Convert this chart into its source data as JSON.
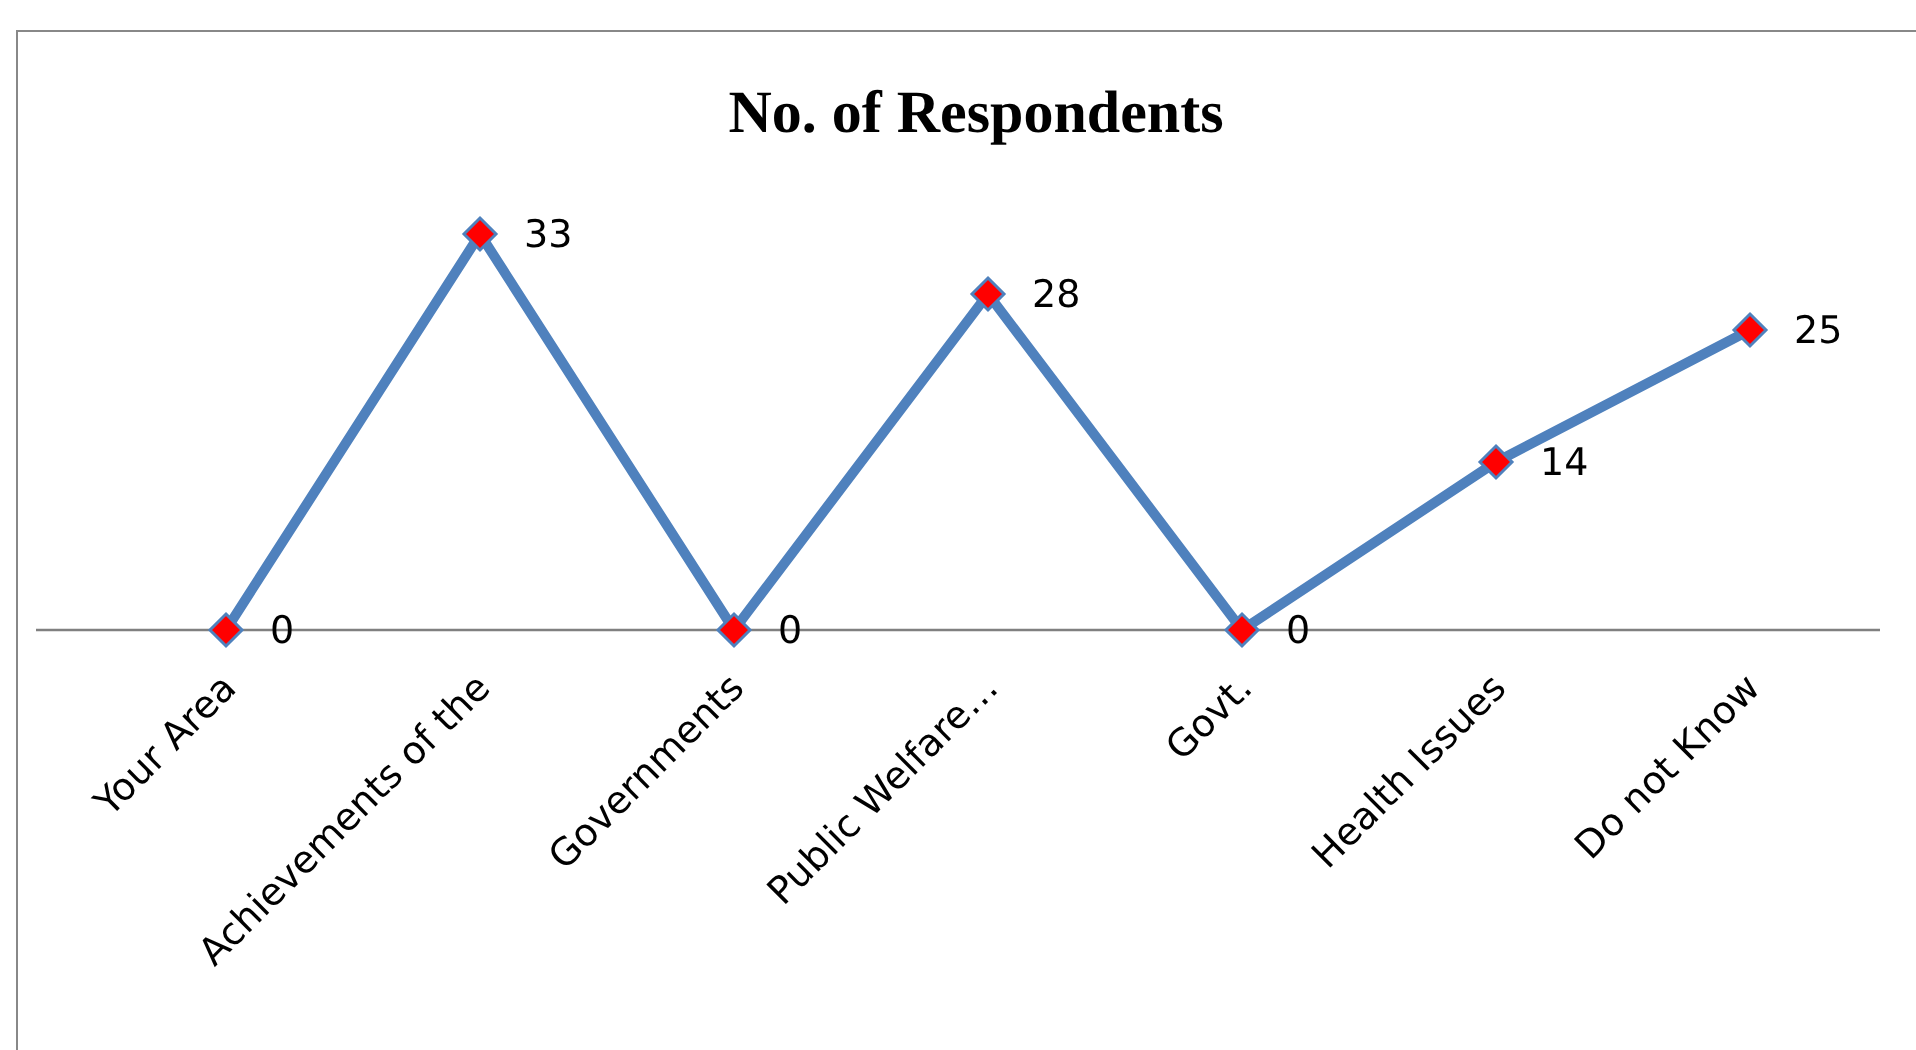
{
  "chart_data": {
    "type": "line",
    "title": "No. of Respondents",
    "categories": [
      "Your Area",
      "Achievements of the",
      "Governments",
      "Public Welfare…",
      "Govt.",
      "Health Issues",
      "Do not Know"
    ],
    "series": [
      {
        "color": "#4f81bd",
        "values": [
          0,
          33,
          0,
          28,
          0,
          14,
          25
        ]
      }
    ],
    "data_labels": true,
    "marker": "diamond"
  }
}
